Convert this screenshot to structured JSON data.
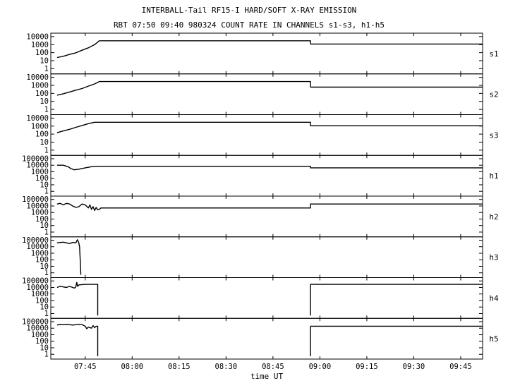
{
  "chart_data": {
    "type": "line",
    "title": "INTERBALL-Tail RF15-I HARD/SOFT X-RAY EMISSION",
    "subtitle": "RBT 07:50 09:40 980324  COUNT RATE IN CHANNELS s1-s3, h1-h5",
    "xlabel": "time UT",
    "x_tick_labels": [
      "07:45",
      "08:00",
      "08:15",
      "08:30",
      "08:45",
      "09:00",
      "09:15",
      "09:30",
      "09:45"
    ],
    "x_tick_values": [
      465,
      480,
      495,
      510,
      525,
      540,
      555,
      570,
      585
    ],
    "x_unit": "minutes after 00:00 UT",
    "xlim": [
      454,
      592
    ],
    "y_scale": "log",
    "line_color": "#000000",
    "panels": [
      {
        "name": "s1",
        "ylim": [
          0.5,
          12000
        ],
        "ytick_labels": [
          "10000",
          "1000",
          "100",
          "10",
          "1"
        ],
        "ytick_values": [
          10000,
          1000,
          100,
          10,
          1
        ],
        "points": [
          [
            456,
            25
          ],
          [
            458,
            35
          ],
          [
            460,
            60
          ],
          [
            462,
            95
          ],
          [
            464,
            200
          ],
          [
            466,
            400
          ],
          [
            468,
            1000
          ],
          [
            469.5,
            3000
          ],
          [
            470,
            3000
          ],
          [
            537,
            3000
          ],
          [
            537,
            1200
          ],
          [
            592,
            1200
          ]
        ]
      },
      {
        "name": "s2",
        "ylim": [
          0.5,
          12000
        ],
        "ytick_labels": [
          "10000",
          "1000",
          "100",
          "10",
          "1"
        ],
        "ytick_values": [
          10000,
          1000,
          100,
          10,
          1
        ],
        "points": [
          [
            456,
            60
          ],
          [
            458,
            90
          ],
          [
            460,
            150
          ],
          [
            462,
            250
          ],
          [
            464,
            400
          ],
          [
            466,
            800
          ],
          [
            468,
            1500
          ],
          [
            469.5,
            3000
          ],
          [
            470,
            3000
          ],
          [
            537,
            3000
          ],
          [
            537,
            600
          ],
          [
            592,
            600
          ]
        ]
      },
      {
        "name": "s3",
        "ylim": [
          0.5,
          12000
        ],
        "ytick_labels": [
          "10000",
          "1000",
          "100",
          "10",
          "1"
        ],
        "ytick_values": [
          10000,
          1000,
          100,
          10,
          1
        ],
        "points": [
          [
            456,
            150
          ],
          [
            458,
            250
          ],
          [
            460,
            400
          ],
          [
            462,
            700
          ],
          [
            464,
            1200
          ],
          [
            466,
            2000
          ],
          [
            468,
            3000
          ],
          [
            470,
            3000
          ],
          [
            537,
            3000
          ],
          [
            537,
            1100
          ],
          [
            592,
            1100
          ]
        ]
      },
      {
        "name": "h1",
        "ylim": [
          0.5,
          120000
        ],
        "ytick_labels": [
          "100000",
          "10000",
          "1000",
          "100",
          "10",
          "1"
        ],
        "ytick_values": [
          100000,
          10000,
          1000,
          100,
          10,
          1
        ],
        "points": [
          [
            456,
            10000
          ],
          [
            458,
            10000
          ],
          [
            459.5,
            6000
          ],
          [
            460.5,
            3000
          ],
          [
            461.5,
            2000
          ],
          [
            463,
            2500
          ],
          [
            465,
            4000
          ],
          [
            467,
            6000
          ],
          [
            469,
            7000
          ],
          [
            470,
            7000
          ],
          [
            537,
            7000
          ],
          [
            537,
            4000
          ],
          [
            592,
            4000
          ]
        ]
      },
      {
        "name": "h2",
        "ylim": [
          0.5,
          120000
        ],
        "ytick_labels": [
          "100000",
          "10000",
          "1000",
          "100",
          "10",
          "1"
        ],
        "ytick_values": [
          100000,
          10000,
          1000,
          100,
          10,
          1
        ],
        "points": [
          [
            456,
            20000
          ],
          [
            457,
            25000
          ],
          [
            458,
            15000
          ],
          [
            459,
            25000
          ],
          [
            460,
            20000
          ],
          [
            461,
            10000
          ],
          [
            462,
            6000
          ],
          [
            463,
            8000
          ],
          [
            464,
            20000
          ],
          [
            465,
            15000
          ],
          [
            466,
            5000
          ],
          [
            466.5,
            15000
          ],
          [
            467,
            3000
          ],
          [
            467.5,
            8000
          ],
          [
            468,
            2000
          ],
          [
            468.5,
            6000
          ],
          [
            469,
            2500
          ],
          [
            469.5,
            3000
          ],
          [
            470,
            5000
          ],
          [
            537,
            5000
          ],
          [
            537,
            20000
          ],
          [
            592,
            20000
          ]
        ]
      },
      {
        "name": "h3",
        "ylim": [
          0.5,
          120000
        ],
        "ytick_labels": [
          "100000",
          "10000",
          "1000",
          "100",
          "10",
          "1"
        ],
        "ytick_values": [
          100000,
          10000,
          1000,
          100,
          10,
          1
        ],
        "points": [
          [
            456,
            40000
          ],
          [
            458,
            50000
          ],
          [
            459,
            40000
          ],
          [
            460,
            30000
          ],
          [
            461,
            45000
          ],
          [
            462,
            40000
          ],
          [
            462.5,
            120000
          ],
          [
            462.8,
            60000
          ],
          [
            463,
            30000
          ],
          [
            463.2,
            10000
          ],
          [
            463.3,
            1000
          ],
          [
            463.4,
            100
          ],
          [
            463.5,
            10
          ],
          [
            463.6,
            0.5
          ]
        ]
      },
      {
        "name": "h4",
        "ylim": [
          0.5,
          120000
        ],
        "ytick_labels": [
          "100000",
          "10000",
          "1000",
          "100",
          "10",
          "1"
        ],
        "ytick_values": [
          100000,
          10000,
          1000,
          100,
          10,
          1
        ],
        "segments": [
          [
            [
              456,
              10000
            ],
            [
              457,
              15000
            ],
            [
              458,
              12000
            ],
            [
              459,
              10000
            ],
            [
              460,
              15000
            ],
            [
              461,
              10000
            ],
            [
              461.5,
              8000
            ],
            [
              462,
              12000
            ],
            [
              462.3,
              60000
            ],
            [
              462.6,
              15000
            ],
            [
              463,
              25000
            ],
            [
              465,
              30000
            ],
            [
              467,
              30000
            ],
            [
              469,
              30000
            ],
            [
              469,
              0.5
            ]
          ],
          [
            [
              537,
              0.5
            ],
            [
              537,
              30000
            ],
            [
              592,
              30000
            ]
          ]
        ]
      },
      {
        "name": "h5",
        "ylim": [
          0.5,
          120000
        ],
        "ytick_labels": [
          "100000",
          "10000",
          "1000",
          "100",
          "10",
          "1"
        ],
        "ytick_values": [
          100000,
          10000,
          1000,
          100,
          10,
          1
        ],
        "segments": [
          [
            [
              456,
              30000
            ],
            [
              457,
              40000
            ],
            [
              458,
              35000
            ],
            [
              459,
              40000
            ],
            [
              460,
              35000
            ],
            [
              461,
              30000
            ],
            [
              462,
              35000
            ],
            [
              463,
              40000
            ],
            [
              464,
              35000
            ],
            [
              465,
              20000
            ],
            [
              465.5,
              8000
            ],
            [
              466,
              15000
            ],
            [
              467,
              10000
            ],
            [
              467.5,
              25000
            ],
            [
              468,
              12000
            ],
            [
              468.5,
              20000
            ],
            [
              469,
              20000
            ],
            [
              469,
              0.5
            ]
          ],
          [
            [
              537,
              0.5
            ],
            [
              537,
              20000
            ],
            [
              592,
              20000
            ]
          ]
        ]
      }
    ]
  }
}
